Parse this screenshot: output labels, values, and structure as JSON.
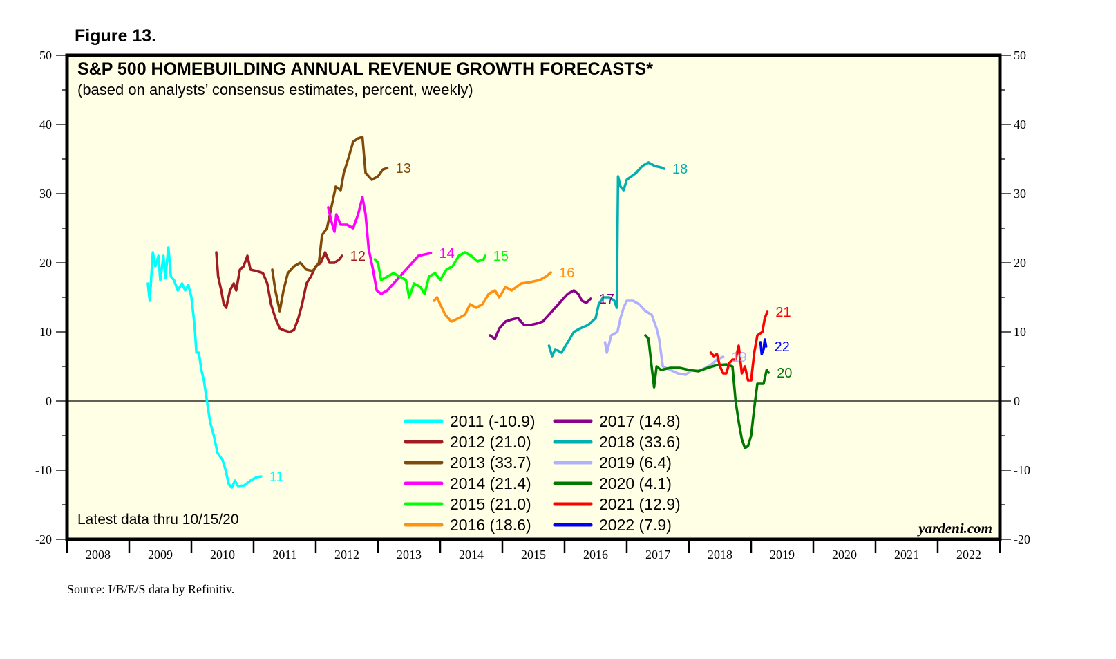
{
  "figure_label": "Figure 13.",
  "source": "Source: I/B/E/S data by Refinitiv.",
  "chart_data": {
    "type": "line",
    "title": "S&P 500 HOMEBUILDING ANNUAL REVENUE GROWTH FORECASTS*",
    "subtitle": "(based on analysts’ consensus estimates, percent, weekly)",
    "note": "Latest data thru 10/15/20",
    "brand": "yardeni.com",
    "xlabel": "",
    "ylabel": "",
    "xlim": [
      2008,
      2023
    ],
    "ylim": [
      -20,
      50
    ],
    "y_ticks": [
      -20,
      -10,
      0,
      10,
      20,
      30,
      40,
      50
    ],
    "y_minor_step": 5,
    "x_tick_labels": [
      "2008",
      "2009",
      "2010",
      "2011",
      "2012",
      "2013",
      "2014",
      "2015",
      "2016",
      "2017",
      "2018",
      "2019",
      "2020",
      "2021",
      "2022"
    ],
    "zero_line": true,
    "grid": false,
    "legend_position": "bottom-center",
    "series": [
      {
        "name": "2011",
        "legend": "2011 (-10.9)",
        "end_label": "11",
        "color": "#00ffff",
        "points": [
          [
            2009.3,
            17
          ],
          [
            2009.33,
            14.5
          ],
          [
            2009.38,
            21.5
          ],
          [
            2009.42,
            19.5
          ],
          [
            2009.47,
            21
          ],
          [
            2009.5,
            17.5
          ],
          [
            2009.55,
            21
          ],
          [
            2009.58,
            17.8
          ],
          [
            2009.63,
            22.2
          ],
          [
            2009.67,
            18
          ],
          [
            2009.72,
            17.5
          ],
          [
            2009.78,
            16
          ],
          [
            2009.85,
            17
          ],
          [
            2009.9,
            16
          ],
          [
            2009.95,
            16.8
          ],
          [
            2010.0,
            15
          ],
          [
            2010.05,
            11
          ],
          [
            2010.08,
            7
          ],
          [
            2010.12,
            7
          ],
          [
            2010.16,
            4.5
          ],
          [
            2010.2,
            3
          ],
          [
            2010.25,
            0
          ],
          [
            2010.3,
            -3
          ],
          [
            2010.36,
            -5
          ],
          [
            2010.42,
            -7.5
          ],
          [
            2010.5,
            -8.5
          ],
          [
            2010.55,
            -10
          ],
          [
            2010.6,
            -12
          ],
          [
            2010.65,
            -12.5
          ],
          [
            2010.7,
            -11.5
          ],
          [
            2010.75,
            -12.3
          ],
          [
            2010.85,
            -12.2
          ],
          [
            2010.95,
            -11.5
          ],
          [
            2011.05,
            -11
          ],
          [
            2011.12,
            -10.9
          ]
        ]
      },
      {
        "name": "2012",
        "legend": "2012 (21.0)",
        "end_label": "12",
        "color": "#a01c20",
        "points": [
          [
            2010.4,
            21.5
          ],
          [
            2010.43,
            18
          ],
          [
            2010.48,
            16
          ],
          [
            2010.52,
            14
          ],
          [
            2010.56,
            13.5
          ],
          [
            2010.62,
            16
          ],
          [
            2010.68,
            17
          ],
          [
            2010.72,
            16
          ],
          [
            2010.78,
            19
          ],
          [
            2010.84,
            19.5
          ],
          [
            2010.9,
            21
          ],
          [
            2010.95,
            19
          ],
          [
            2011.05,
            18.8
          ],
          [
            2011.15,
            18.5
          ],
          [
            2011.22,
            17
          ],
          [
            2011.28,
            14
          ],
          [
            2011.35,
            12
          ],
          [
            2011.42,
            10.5
          ],
          [
            2011.5,
            10.2
          ],
          [
            2011.58,
            10
          ],
          [
            2011.65,
            10.3
          ],
          [
            2011.72,
            12
          ],
          [
            2011.78,
            14
          ],
          [
            2011.85,
            17
          ],
          [
            2011.92,
            18
          ],
          [
            2012.0,
            19.5
          ],
          [
            2012.08,
            20
          ],
          [
            2012.15,
            21.5
          ],
          [
            2012.22,
            20
          ],
          [
            2012.3,
            20
          ],
          [
            2012.38,
            20.5
          ],
          [
            2012.42,
            21.0
          ]
        ]
      },
      {
        "name": "2013",
        "legend": "2013 (33.7)",
        "end_label": "13",
        "color": "#7f4a0a",
        "points": [
          [
            2011.3,
            19
          ],
          [
            2011.35,
            16
          ],
          [
            2011.42,
            13
          ],
          [
            2011.48,
            16
          ],
          [
            2011.55,
            18.5
          ],
          [
            2011.65,
            19.5
          ],
          [
            2011.75,
            20
          ],
          [
            2011.85,
            19
          ],
          [
            2011.95,
            18.8
          ],
          [
            2012.05,
            20
          ],
          [
            2012.1,
            24
          ],
          [
            2012.18,
            25
          ],
          [
            2012.25,
            28
          ],
          [
            2012.32,
            31
          ],
          [
            2012.4,
            30.5
          ],
          [
            2012.45,
            33
          ],
          [
            2012.52,
            35
          ],
          [
            2012.6,
            37.5
          ],
          [
            2012.68,
            38
          ],
          [
            2012.75,
            38.2
          ],
          [
            2012.8,
            33
          ],
          [
            2012.9,
            32
          ],
          [
            2013.0,
            32.5
          ],
          [
            2013.08,
            33.5
          ],
          [
            2013.15,
            33.7
          ]
        ]
      },
      {
        "name": "2014",
        "legend": "2014 (21.4)",
        "end_label": "14",
        "color": "#ff00ff",
        "points": [
          [
            2012.2,
            28
          ],
          [
            2012.25,
            26
          ],
          [
            2012.3,
            24.5
          ],
          [
            2012.33,
            27
          ],
          [
            2012.4,
            25.5
          ],
          [
            2012.5,
            25.5
          ],
          [
            2012.6,
            25
          ],
          [
            2012.68,
            27
          ],
          [
            2012.75,
            29.5
          ],
          [
            2012.8,
            27
          ],
          [
            2012.85,
            22
          ],
          [
            2012.92,
            19
          ],
          [
            2012.98,
            16
          ],
          [
            2013.05,
            15.5
          ],
          [
            2013.15,
            16
          ],
          [
            2013.25,
            17
          ],
          [
            2013.35,
            18
          ],
          [
            2013.45,
            19
          ],
          [
            2013.55,
            20
          ],
          [
            2013.65,
            21
          ],
          [
            2013.75,
            21.2
          ],
          [
            2013.85,
            21.4
          ]
        ]
      },
      {
        "name": "2015",
        "legend": "2015 (21.0)",
        "end_label": "15",
        "color": "#00ff00",
        "points": [
          [
            2012.95,
            20.5
          ],
          [
            2013.0,
            20
          ],
          [
            2013.05,
            17.5
          ],
          [
            2013.15,
            18
          ],
          [
            2013.25,
            18.5
          ],
          [
            2013.35,
            18
          ],
          [
            2013.45,
            17.5
          ],
          [
            2013.5,
            15
          ],
          [
            2013.58,
            17
          ],
          [
            2013.68,
            16.5
          ],
          [
            2013.75,
            15.5
          ],
          [
            2013.82,
            18
          ],
          [
            2013.92,
            18.5
          ],
          [
            2014.0,
            17.5
          ],
          [
            2014.1,
            19
          ],
          [
            2014.2,
            19.5
          ],
          [
            2014.3,
            21
          ],
          [
            2014.4,
            21.5
          ],
          [
            2014.5,
            21
          ],
          [
            2014.6,
            20.2
          ],
          [
            2014.7,
            20.5
          ],
          [
            2014.72,
            21.0
          ]
        ]
      },
      {
        "name": "2016",
        "legend": "2016 (18.6)",
        "end_label": "16",
        "color": "#ff9010",
        "points": [
          [
            2013.9,
            14.5
          ],
          [
            2013.95,
            15
          ],
          [
            2014.0,
            14
          ],
          [
            2014.08,
            12.5
          ],
          [
            2014.18,
            11.5
          ],
          [
            2014.3,
            12
          ],
          [
            2014.4,
            12.5
          ],
          [
            2014.48,
            14
          ],
          [
            2014.58,
            13.5
          ],
          [
            2014.68,
            14
          ],
          [
            2014.78,
            15.5
          ],
          [
            2014.88,
            16
          ],
          [
            2014.95,
            15
          ],
          [
            2015.05,
            16.5
          ],
          [
            2015.15,
            16
          ],
          [
            2015.3,
            17
          ],
          [
            2015.45,
            17.2
          ],
          [
            2015.6,
            17.5
          ],
          [
            2015.7,
            18
          ],
          [
            2015.78,
            18.6
          ]
        ]
      },
      {
        "name": "2017",
        "legend": "2017 (14.8)",
        "end_label": "17",
        "color": "#8b008b",
        "points": [
          [
            2014.8,
            9.5
          ],
          [
            2014.88,
            9
          ],
          [
            2014.95,
            10.5
          ],
          [
            2015.05,
            11.5
          ],
          [
            2015.15,
            11.8
          ],
          [
            2015.25,
            12
          ],
          [
            2015.35,
            11
          ],
          [
            2015.45,
            11
          ],
          [
            2015.55,
            11.2
          ],
          [
            2015.65,
            11.5
          ],
          [
            2015.75,
            12.5
          ],
          [
            2015.85,
            13.5
          ],
          [
            2015.95,
            14.5
          ],
          [
            2016.05,
            15.5
          ],
          [
            2016.15,
            16
          ],
          [
            2016.22,
            15.5
          ],
          [
            2016.28,
            14.5
          ],
          [
            2016.35,
            14.2
          ],
          [
            2016.42,
            14.8
          ]
        ]
      },
      {
        "name": "2018",
        "legend": "2018 (33.6)",
        "end_label": "18",
        "color": "#00b0b0",
        "points": [
          [
            2015.75,
            8
          ],
          [
            2015.8,
            6.5
          ],
          [
            2015.85,
            7.5
          ],
          [
            2015.95,
            7
          ],
          [
            2016.05,
            8.5
          ],
          [
            2016.15,
            10
          ],
          [
            2016.25,
            10.5
          ],
          [
            2016.38,
            11
          ],
          [
            2016.5,
            12
          ],
          [
            2016.55,
            14
          ],
          [
            2016.62,
            15
          ],
          [
            2016.72,
            15
          ],
          [
            2016.8,
            14.5
          ],
          [
            2016.84,
            13.5
          ],
          [
            2016.86,
            32.5
          ],
          [
            2016.9,
            31
          ],
          [
            2016.95,
            30.5
          ],
          [
            2017.0,
            32
          ],
          [
            2017.15,
            33
          ],
          [
            2017.25,
            34
          ],
          [
            2017.35,
            34.5
          ],
          [
            2017.45,
            34
          ],
          [
            2017.55,
            33.8
          ],
          [
            2017.6,
            33.6
          ]
        ]
      },
      {
        "name": "2019",
        "legend": "2019 (6.4)",
        "end_label": "19",
        "color": "#b0b0ff",
        "points": [
          [
            2016.65,
            8.5
          ],
          [
            2016.68,
            7
          ],
          [
            2016.75,
            9.5
          ],
          [
            2016.85,
            10
          ],
          [
            2016.9,
            12
          ],
          [
            2016.95,
            13.5
          ],
          [
            2017.0,
            14.5
          ],
          [
            2017.1,
            14.5
          ],
          [
            2017.2,
            14
          ],
          [
            2017.3,
            13
          ],
          [
            2017.4,
            12.5
          ],
          [
            2017.48,
            10.5
          ],
          [
            2017.52,
            9
          ],
          [
            2017.58,
            5
          ],
          [
            2017.7,
            4.5
          ],
          [
            2017.82,
            4
          ],
          [
            2017.95,
            3.8
          ],
          [
            2018.05,
            4.5
          ],
          [
            2018.2,
            4.5
          ],
          [
            2018.35,
            5.2
          ],
          [
            2018.45,
            6
          ],
          [
            2018.55,
            6.4
          ]
        ]
      },
      {
        "name": "2020",
        "legend": "2020 (4.1)",
        "end_label": "20",
        "color": "#007700",
        "points": [
          [
            2017.3,
            9.5
          ],
          [
            2017.35,
            9
          ],
          [
            2017.4,
            5
          ],
          [
            2017.44,
            2
          ],
          [
            2017.48,
            5
          ],
          [
            2017.55,
            4.5
          ],
          [
            2017.7,
            4.8
          ],
          [
            2017.85,
            4.8
          ],
          [
            2018.0,
            4.5
          ],
          [
            2018.15,
            4.3
          ],
          [
            2018.3,
            4.8
          ],
          [
            2018.45,
            5.2
          ],
          [
            2018.6,
            5.3
          ],
          [
            2018.7,
            5
          ],
          [
            2018.75,
            0
          ],
          [
            2018.8,
            -3
          ],
          [
            2018.85,
            -5.5
          ],
          [
            2018.9,
            -6.8
          ],
          [
            2018.95,
            -6.5
          ],
          [
            2019.0,
            -5
          ],
          [
            2019.05,
            -1
          ],
          [
            2019.1,
            2.5
          ],
          [
            2019.2,
            2.5
          ],
          [
            2019.25,
            4.5
          ],
          [
            2019.28,
            4.1
          ]
        ]
      },
      {
        "name": "2021",
        "legend": "2021 (12.9)",
        "end_label": "21",
        "color": "#ff0000",
        "points": [
          [
            2018.35,
            7
          ],
          [
            2018.4,
            6.5
          ],
          [
            2018.45,
            6.8
          ],
          [
            2018.5,
            5
          ],
          [
            2018.55,
            4
          ],
          [
            2018.6,
            4
          ],
          [
            2018.65,
            5.5
          ],
          [
            2018.7,
            6
          ],
          [
            2018.75,
            6
          ],
          [
            2018.8,
            8
          ],
          [
            2018.85,
            4
          ],
          [
            2018.9,
            5
          ],
          [
            2018.95,
            3
          ],
          [
            2019.0,
            3
          ],
          [
            2019.05,
            7
          ],
          [
            2019.1,
            9.5
          ],
          [
            2019.18,
            10
          ],
          [
            2019.22,
            12
          ],
          [
            2019.26,
            12.9
          ]
        ]
      },
      {
        "name": "2022",
        "legend": "2022 (7.9)",
        "end_label": "22",
        "color": "#0000ff",
        "points": [
          [
            2019.15,
            8.5
          ],
          [
            2019.17,
            6.8
          ],
          [
            2019.2,
            7.5
          ],
          [
            2019.22,
            8.9
          ],
          [
            2019.24,
            7.9
          ]
        ]
      }
    ],
    "legend_columns": [
      [
        "2011",
        "2012",
        "2013",
        "2014",
        "2015",
        "2016"
      ],
      [
        "2017",
        "2018",
        "2019",
        "2020",
        "2021",
        "2022"
      ]
    ]
  }
}
